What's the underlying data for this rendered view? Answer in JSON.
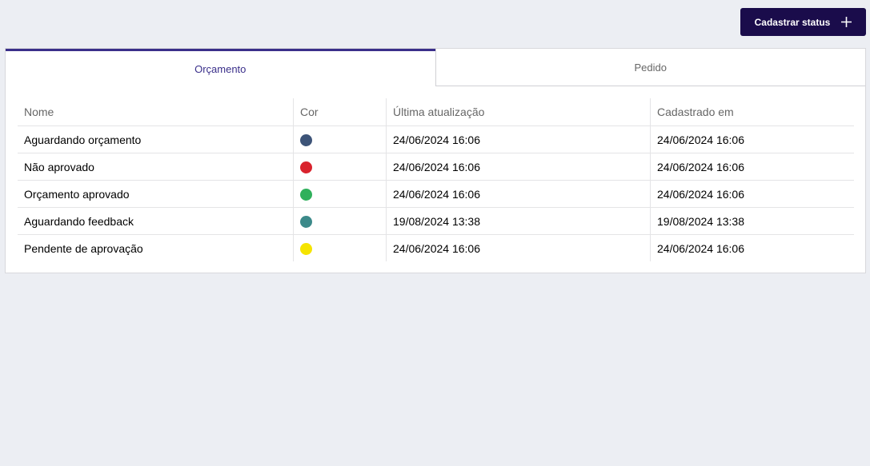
{
  "header": {
    "button": "Cadastrar status"
  },
  "tabs": [
    "Orçamento",
    "Pedido"
  ],
  "table": {
    "columns": [
      "Nome",
      "Cor",
      "Última atualização",
      "Cadastrado em"
    ],
    "rows": [
      {
        "name": "Aguardando orçamento",
        "color": "#3d5478",
        "updated": "24/06/2024 16:06",
        "created": "24/06/2024 16:06"
      },
      {
        "name": "Não aprovado",
        "color": "#d9232d",
        "updated": "24/06/2024 16:06",
        "created": "24/06/2024 16:06"
      },
      {
        "name": "Orçamento aprovado",
        "color": "#2fb05b",
        "updated": "24/06/2024 16:06",
        "created": "24/06/2024 16:06"
      },
      {
        "name": "Aguardando feedback",
        "color": "#3c8a8a",
        "updated": "19/08/2024 13:38",
        "created": "19/08/2024 13:38"
      },
      {
        "name": "Pendente de aprovação",
        "color": "#f5e400",
        "updated": "24/06/2024 16:06",
        "created": "24/06/2024 16:06"
      }
    ]
  }
}
